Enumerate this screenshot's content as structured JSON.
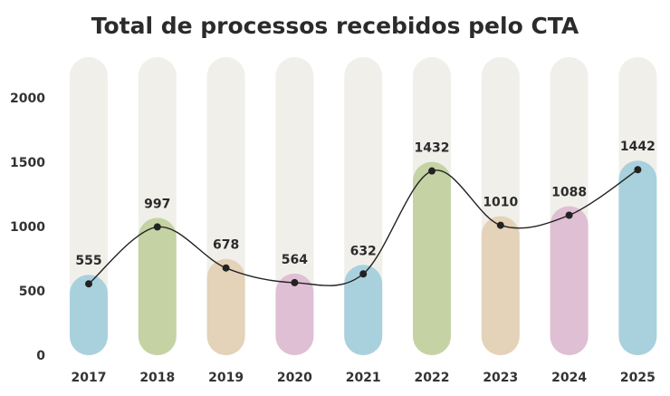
{
  "chart_data": {
    "type": "bar",
    "title": "Total de processos recebidos pelo CTA",
    "categories": [
      "2017",
      "2018",
      "2019",
      "2020",
      "2021",
      "2022",
      "2023",
      "2024",
      "2025"
    ],
    "values": [
      555,
      997,
      678,
      564,
      632,
      1432,
      1010,
      1088,
      1442
    ],
    "ylim": [
      0,
      2300
    ],
    "yticks": [
      0,
      500,
      1000,
      1500,
      2000
    ],
    "xlabel": "",
    "ylabel": "",
    "grid": false,
    "legend": "none",
    "overlay_line": "smoothed line with markers through bar values",
    "colors": {
      "background_track": "#f1efea",
      "bars": [
        "#a9d1dd",
        "#c5d3a4",
        "#e4d2b9",
        "#dfbfd4",
        "#a9d1dd",
        "#c5d3a4",
        "#e4d2b9",
        "#dfbfd4",
        "#a9d1dd"
      ],
      "line": "#222222"
    }
  }
}
